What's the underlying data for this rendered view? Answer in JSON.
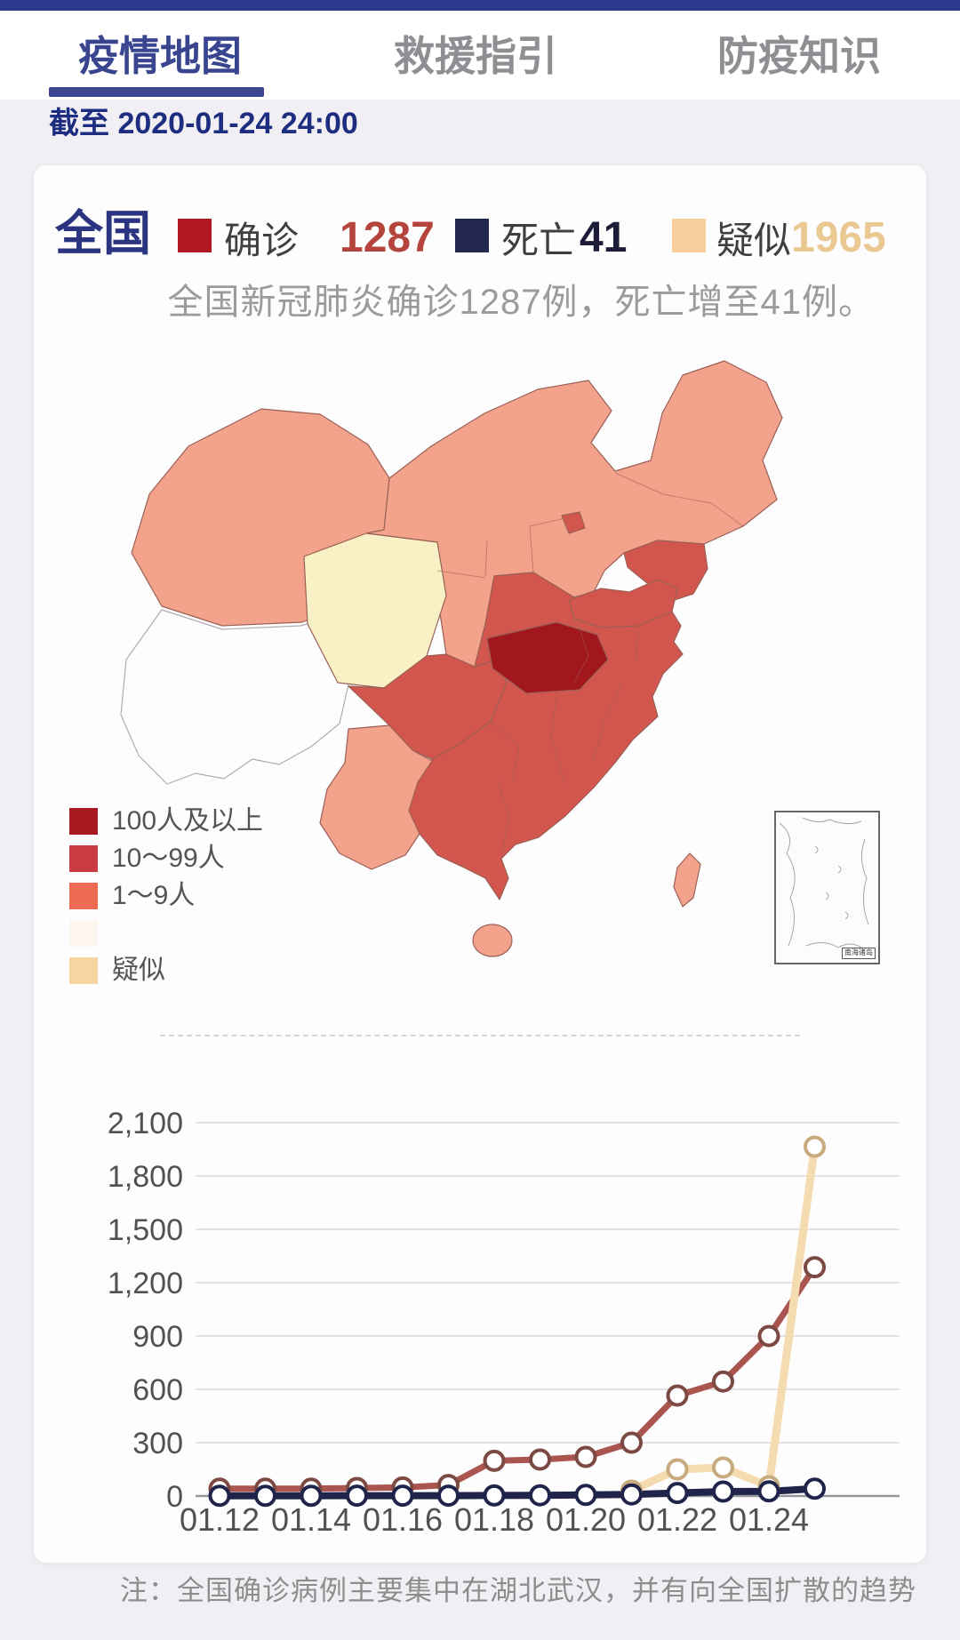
{
  "tabs": {
    "items": [
      {
        "label": "疫情地图",
        "active": true
      },
      {
        "label": "救援指引",
        "active": false
      },
      {
        "label": "防疫知识",
        "active": false
      }
    ]
  },
  "date_note": "截至 2020-01-24 24:00",
  "summary": {
    "region": "全国",
    "stats": [
      {
        "label": "确诊",
        "value": "1287",
        "square_color": "#b2181f",
        "value_color": "#b5453c"
      },
      {
        "label": "死亡",
        "value": "41",
        "square_color": "#23284f",
        "value_color": "#1c1c38"
      },
      {
        "label": "疑似",
        "value": "1965",
        "square_color": "#f7cf9c",
        "value_color": "#e9c892"
      }
    ],
    "subtitle": "全国新冠肺炎确诊1287例，死亡增至41例。"
  },
  "map": {
    "palette": {
      "high": "#a2161d",
      "mid": "#d2564d",
      "low": "#f3a28c",
      "suspected_region": "#f9f1c6",
      "none": "#fefdfe"
    },
    "legend": [
      {
        "label": "100人及以上",
        "color": "#a81a20"
      },
      {
        "label": "10～99人",
        "color": "#c93a41"
      },
      {
        "label": "1～9人",
        "color": "#ec6b52"
      },
      {
        "label": "",
        "color": "#fdf6ef"
      },
      {
        "label": "疑似",
        "color": "#f8d5a0"
      }
    ],
    "inset_label": "南海诸岛"
  },
  "chart_data": {
    "type": "line",
    "title": "",
    "xlabel": "",
    "ylabel": "",
    "ylim": [
      0,
      2100
    ],
    "grid": true,
    "categories": [
      "01.12",
      "01.13",
      "01.14",
      "01.15",
      "01.16",
      "01.17",
      "01.18",
      "01.19",
      "01.20",
      "01.21",
      "01.22",
      "01.23",
      "01.24",
      "01.25"
    ],
    "x_tick_indices": [
      0,
      2,
      4,
      6,
      8,
      10,
      12
    ],
    "y_ticks": [
      {
        "v": 0,
        "label": "0"
      },
      {
        "v": 300,
        "label": "300"
      },
      {
        "v": 600,
        "label": "600"
      },
      {
        "v": 900,
        "label": "900"
      },
      {
        "v": 1200,
        "label": "1,200"
      },
      {
        "v": 1500,
        "label": "1,500"
      },
      {
        "v": 1800,
        "label": "1,800"
      },
      {
        "v": 2100,
        "label": "2,100"
      }
    ],
    "series": [
      {
        "name": "确诊",
        "color": "#ab5550",
        "point_color": "#7c4a43",
        "width": 7,
        "values": [
          41,
          41,
          41,
          45,
          48,
          62,
          198,
          205,
          220,
          300,
          565,
          644,
          900,
          1287
        ]
      },
      {
        "name": "疑似",
        "color": "#f4dcb0",
        "point_color": "#c7ab7e",
        "width": 9,
        "values": [
          null,
          null,
          null,
          null,
          null,
          null,
          null,
          null,
          null,
          30,
          150,
          160,
          55,
          1965
        ]
      },
      {
        "name": "死亡",
        "color": "#20244a",
        "point_color": "#20244a",
        "width": 8,
        "values": [
          1,
          1,
          1,
          2,
          2,
          2,
          3,
          4,
          6,
          9,
          17,
          25,
          26,
          41
        ]
      }
    ]
  },
  "note": "注：全国确诊病例主要集中在湖北武汉，并有向全国扩散的趋势"
}
